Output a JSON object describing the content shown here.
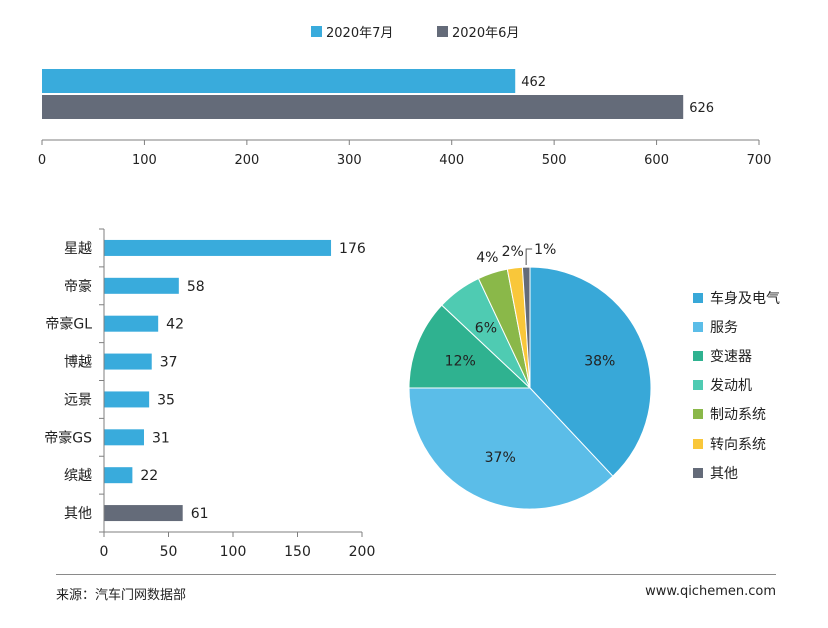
{
  "chart_data": [
    {
      "type": "bar",
      "orientation": "horizontal",
      "series": [
        {
          "name": "2020年7月",
          "color": "#39ABDC",
          "values": [
            462
          ]
        },
        {
          "name": "2020年6月",
          "color": "#646B79",
          "values": [
            626
          ]
        }
      ],
      "xlim": [
        0,
        700
      ],
      "xticks": [
        "0",
        "100",
        "200",
        "300",
        "400",
        "500",
        "600",
        "700"
      ],
      "legend": "top-center",
      "grid": false
    },
    {
      "type": "bar",
      "orientation": "horizontal",
      "categories": [
        "星越",
        "帝豪",
        "帝豪GL",
        "博越",
        "远景",
        "帝豪GS",
        "缤越",
        "其他"
      ],
      "values": [
        176,
        58,
        42,
        37,
        35,
        31,
        22,
        61
      ],
      "colors": [
        "#39ABDC",
        "#39ABDC",
        "#39ABDC",
        "#39ABDC",
        "#39ABDC",
        "#39ABDC",
        "#39ABDC",
        "#646B79"
      ],
      "xlim": [
        0,
        200
      ],
      "xticks": [
        "0",
        "50",
        "100",
        "150",
        "200"
      ],
      "grid": false
    },
    {
      "type": "pie",
      "slices": [
        {
          "label": "车身及电气",
          "value": 38,
          "text": "38%",
          "color": "#38A8D8"
        },
        {
          "label": "服务",
          "value": 37,
          "text": "37%",
          "color": "#5BBDE8"
        },
        {
          "label": "变速器",
          "value": 12,
          "text": "12%",
          "color": "#2FB290"
        },
        {
          "label": "发动机",
          "value": 6,
          "text": "6%",
          "color": "#4FCBB2"
        },
        {
          "label": "制动系统",
          "value": 4,
          "text": "4%",
          "color": "#8AB849"
        },
        {
          "label": "转向系统",
          "value": 2,
          "text": "2%",
          "color": "#F9C73A"
        },
        {
          "label": "其他",
          "value": 1,
          "text": "1%",
          "color": "#646B79"
        }
      ],
      "legend": "right"
    }
  ],
  "footer": {
    "source": "来源：汽车门网数据部",
    "url": "www.qichemen.com"
  }
}
